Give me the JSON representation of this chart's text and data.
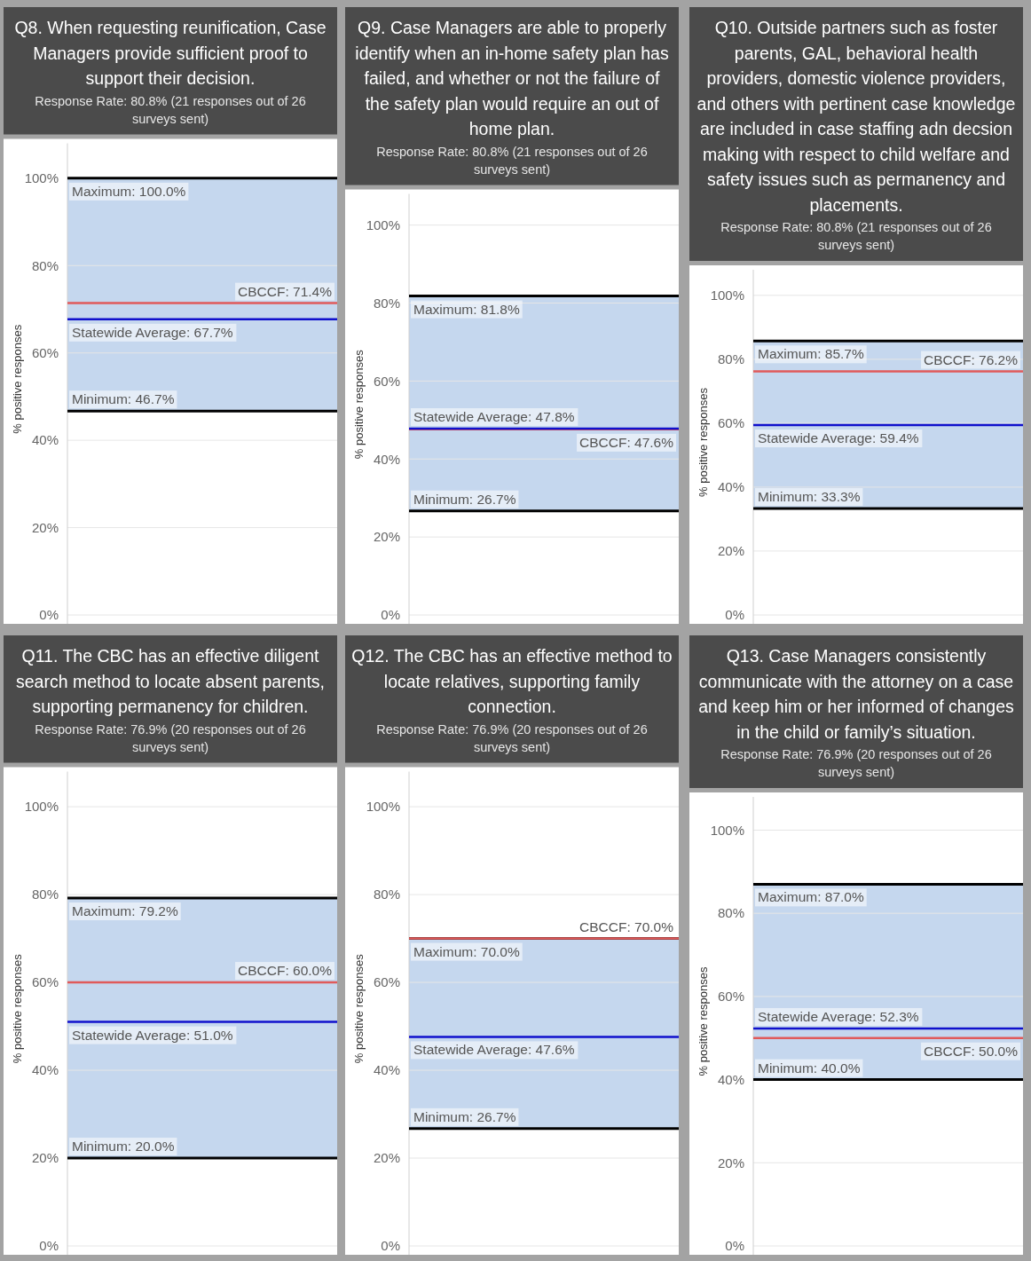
{
  "chart_data": [
    {
      "type": "bar",
      "title": "Q8. When requesting reunification, Case Managers provide sufficient proof to support their decision.",
      "subtitle": "Response Rate: 80.8% (21 responses out of 26 surveys sent)",
      "ylabel": "% positive responses",
      "ylim": [
        0,
        108
      ],
      "yticks": [
        {
          "value": 0,
          "label": "0%"
        },
        {
          "value": 20,
          "label": "20%"
        },
        {
          "value": 40,
          "label": "40%"
        },
        {
          "value": 60,
          "label": "60%"
        },
        {
          "value": 80,
          "label": "80%"
        },
        {
          "value": 100,
          "label": "100%"
        }
      ],
      "grid": "y",
      "tick_labels": "y",
      "categories": [
        null
      ],
      "values": [
        53.3
      ],
      "base": [
        46.7
      ],
      "color": "#c5d7ee",
      "ref_lines": [
        {
          "axis": "y",
          "value": 100,
          "label": "Maximum: 100.0%",
          "color": "#000000"
        },
        {
          "axis": "y",
          "value": 71.4,
          "label": "CBCCF: 71.4%",
          "color": "#e05a5a"
        },
        {
          "axis": "y",
          "value": 67.7,
          "label": "Statewide Average: 67.7%",
          "color": "#1010cc"
        },
        {
          "axis": "y",
          "value": 46.7,
          "label": "Minimum: 46.7%",
          "color": "#000000"
        }
      ]
    },
    {
      "type": "bar",
      "title": "Q9. Case Managers are able to properly identify when an in-home safety plan has failed, and whether or not the failure of the safety plan would require an out of home plan.",
      "subtitle": "Response Rate: 80.8% (21 responses out of 26 surveys sent)",
      "ylabel": "% positive responses",
      "ylim": [
        0,
        108
      ],
      "yticks": [
        {
          "value": 0,
          "label": "0%"
        },
        {
          "value": 20,
          "label": "20%"
        },
        {
          "value": 40,
          "label": "40%"
        },
        {
          "value": 60,
          "label": "60%"
        },
        {
          "value": 80,
          "label": "80%"
        },
        {
          "value": 100,
          "label": "100%"
        }
      ],
      "grid": "y",
      "tick_labels": "y",
      "categories": [
        null
      ],
      "values": [
        55.1
      ],
      "base": [
        26.7
      ],
      "color": "#c5d7ee",
      "ref_lines": [
        {
          "axis": "y",
          "value": 81.8,
          "label": "Maximum: 81.8%",
          "color": "#000000"
        },
        {
          "axis": "y",
          "value": 47.6,
          "label": "CBCCF: 47.6%",
          "color": "#e05a5a"
        },
        {
          "axis": "y",
          "value": 47.8,
          "label": "Statewide Average: 47.8%",
          "color": "#1010cc"
        },
        {
          "axis": "y",
          "value": 26.7,
          "label": "Minimum: 26.7%",
          "color": "#000000"
        }
      ]
    },
    {
      "type": "bar",
      "title": "Q10. Outside partners such as foster parents, GAL, behavioral health providers, domestic violence providers, and others with pertinent case knowledge are included in case staffing adn decsion making with respect to child welfare and safety issues such as permanency and placements.",
      "subtitle": "Response Rate: 80.8% (21 responses out of 26 surveys sent)",
      "ylabel": "% positive responses",
      "ylim": [
        0,
        108
      ],
      "yticks": [
        {
          "value": 0,
          "label": "0%"
        },
        {
          "value": 20,
          "label": "20%"
        },
        {
          "value": 40,
          "label": "40%"
        },
        {
          "value": 60,
          "label": "60%"
        },
        {
          "value": 80,
          "label": "80%"
        },
        {
          "value": 100,
          "label": "100%"
        }
      ],
      "grid": "y",
      "tick_labels": "y",
      "categories": [
        null
      ],
      "values": [
        52.4
      ],
      "base": [
        33.3
      ],
      "color": "#c5d7ee",
      "ref_lines": [
        {
          "axis": "y",
          "value": 85.7,
          "label": "Maximum: 85.7%",
          "color": "#000000"
        },
        {
          "axis": "y",
          "value": 76.2,
          "label": "CBCCF: 76.2%",
          "color": "#e05a5a"
        },
        {
          "axis": "y",
          "value": 59.4,
          "label": "Statewide Average: 59.4%",
          "color": "#1010cc"
        },
        {
          "axis": "y",
          "value": 33.3,
          "label": "Minimum: 33.3%",
          "color": "#000000"
        }
      ]
    },
    {
      "type": "bar",
      "title": "Q11. The CBC has an effective diligent search method to locate absent parents, supporting permanency for children.",
      "subtitle": "Response Rate: 76.9% (20 responses out of 26 surveys sent)",
      "ylabel": "% positive responses",
      "ylim": [
        0,
        108
      ],
      "yticks": [
        {
          "value": 0,
          "label": "0%"
        },
        {
          "value": 20,
          "label": "20%"
        },
        {
          "value": 40,
          "label": "40%"
        },
        {
          "value": 60,
          "label": "60%"
        },
        {
          "value": 80,
          "label": "80%"
        },
        {
          "value": 100,
          "label": "100%"
        }
      ],
      "grid": "y",
      "tick_labels": "y",
      "categories": [
        null
      ],
      "values": [
        59.2
      ],
      "base": [
        20.0
      ],
      "color": "#c5d7ee",
      "ref_lines": [
        {
          "axis": "y",
          "value": 79.2,
          "label": "Maximum: 79.2%",
          "color": "#000000"
        },
        {
          "axis": "y",
          "value": 60.0,
          "label": "CBCCF: 60.0%",
          "color": "#e05a5a"
        },
        {
          "axis": "y",
          "value": 51.0,
          "label": "Statewide Average: 51.0%",
          "color": "#1010cc"
        },
        {
          "axis": "y",
          "value": 20.0,
          "label": "Minimum: 20.0%",
          "color": "#000000"
        }
      ]
    },
    {
      "type": "bar",
      "title": "Q12. The CBC has an effective method to locate relatives, supporting family connection.",
      "subtitle": "Response Rate: 76.9% (20 responses out of 26 surveys sent)",
      "ylabel": "% positive responses",
      "ylim": [
        0,
        108
      ],
      "yticks": [
        {
          "value": 0,
          "label": "0%"
        },
        {
          "value": 20,
          "label": "20%"
        },
        {
          "value": 40,
          "label": "40%"
        },
        {
          "value": 60,
          "label": "60%"
        },
        {
          "value": 80,
          "label": "80%"
        },
        {
          "value": 100,
          "label": "100%"
        }
      ],
      "grid": "y",
      "tick_labels": "y",
      "categories": [
        null
      ],
      "values": [
        43.3
      ],
      "base": [
        26.7
      ],
      "color": "#c5d7ee",
      "ref_lines": [
        {
          "axis": "y",
          "value": 70.0,
          "label": "Maximum: 70.0%",
          "color": "#000000"
        },
        {
          "axis": "y",
          "value": 70.0,
          "label": "CBCCF: 70.0%",
          "color": "#e05a5a"
        },
        {
          "axis": "y",
          "value": 47.6,
          "label": "Statewide Average: 47.6%",
          "color": "#1010cc"
        },
        {
          "axis": "y",
          "value": 26.7,
          "label": "Minimum: 26.7%",
          "color": "#000000"
        }
      ]
    },
    {
      "type": "bar",
      "title": "Q13. Case Managers consistently communicate with the attorney on a case and keep him or her informed of changes in the child or family’s situation.",
      "subtitle": "Response Rate: 76.9% (20 responses out of 26 surveys sent)",
      "ylabel": "% positive responses",
      "ylim": [
        0,
        108
      ],
      "yticks": [
        {
          "value": 0,
          "label": "0%"
        },
        {
          "value": 20,
          "label": "20%"
        },
        {
          "value": 40,
          "label": "40%"
        },
        {
          "value": 60,
          "label": "60%"
        },
        {
          "value": 80,
          "label": "80%"
        },
        {
          "value": 100,
          "label": "100%"
        }
      ],
      "grid": "y",
      "tick_labels": "y",
      "categories": [
        null
      ],
      "values": [
        47.0
      ],
      "base": [
        40.0
      ],
      "color": "#c5d7ee",
      "ref_lines": [
        {
          "axis": "y",
          "value": 87.0,
          "label": "Maximum: 87.0%",
          "color": "#000000"
        },
        {
          "axis": "y",
          "value": 50.0,
          "label": "CBCCF: 50.0%",
          "color": "#e05a5a"
        },
        {
          "axis": "y",
          "value": 52.3,
          "label": "Statewide Average: 52.3%",
          "color": "#1010cc"
        },
        {
          "axis": "y",
          "value": 40.0,
          "label": "Minimum: 40.0%",
          "color": "#000000"
        }
      ]
    }
  ]
}
